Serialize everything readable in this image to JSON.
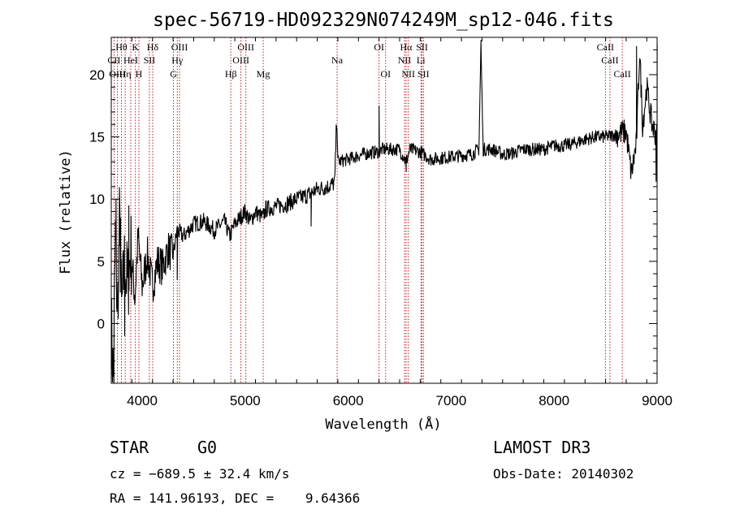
{
  "chart_data": {
    "type": "line",
    "title": "spec-56719-HD092329N074249M_sp12-046.fits",
    "xlabel": "Wavelength (Å)",
    "ylabel": "Flux (relative)",
    "xlim": [
      3700,
      9000
    ],
    "ylim": [
      -4.8,
      23
    ],
    "xticks": [
      4000,
      5000,
      6000,
      7000,
      8000,
      9000
    ],
    "yticks": [
      0,
      5,
      10,
      15,
      20
    ],
    "anchors": [
      [
        3700,
        0
      ],
      [
        3720,
        -4.5
      ],
      [
        3740,
        7
      ],
      [
        3760,
        0.5
      ],
      [
        3780,
        8
      ],
      [
        3800,
        0.8
      ],
      [
        3830,
        5
      ],
      [
        3860,
        3
      ],
      [
        3890,
        6
      ],
      [
        3930,
        2
      ],
      [
        3960,
        7
      ],
      [
        4000,
        3
      ],
      [
        4050,
        5.5
      ],
      [
        4100,
        3
      ],
      [
        4150,
        5
      ],
      [
        4200,
        4.5
      ],
      [
        4250,
        6
      ],
      [
        4300,
        5.5
      ],
      [
        4340,
        7.5
      ],
      [
        4400,
        7
      ],
      [
        4500,
        8
      ],
      [
        4600,
        8.2
      ],
      [
        4700,
        7.5
      ],
      [
        4800,
        8.2
      ],
      [
        4850,
        7
      ],
      [
        4900,
        8
      ],
      [
        5000,
        9
      ],
      [
        5050,
        8.2
      ],
      [
        5100,
        9
      ],
      [
        5170,
        8.5
      ],
      [
        5200,
        9.2
      ],
      [
        5300,
        9.4
      ],
      [
        5400,
        9.6
      ],
      [
        5500,
        10
      ],
      [
        5600,
        10.3
      ],
      [
        5700,
        10.8
      ],
      [
        5800,
        11
      ],
      [
        5870,
        11.3
      ],
      [
        5890,
        17
      ],
      [
        5900,
        13
      ],
      [
        6000,
        13.2
      ],
      [
        6100,
        13.5
      ],
      [
        6200,
        13.7
      ],
      [
        6300,
        13.8
      ],
      [
        6330,
        14
      ],
      [
        6400,
        14
      ],
      [
        6500,
        14
      ],
      [
        6563,
        13
      ],
      [
        6600,
        14
      ],
      [
        6700,
        13.8
      ],
      [
        6800,
        13.2
      ],
      [
        6900,
        13.3
      ],
      [
        7000,
        13.4
      ],
      [
        7100,
        13.5
      ],
      [
        7200,
        13.6
      ],
      [
        7270,
        14
      ],
      [
        7290,
        22.5
      ],
      [
        7310,
        14
      ],
      [
        7400,
        14
      ],
      [
        7500,
        13.6
      ],
      [
        7600,
        13.7
      ],
      [
        7700,
        14
      ],
      [
        7800,
        14
      ],
      [
        7900,
        14
      ],
      [
        8000,
        14.3
      ],
      [
        8100,
        14.3
      ],
      [
        8200,
        14.5
      ],
      [
        8300,
        14.8
      ],
      [
        8400,
        15
      ],
      [
        8500,
        15
      ],
      [
        8600,
        15.2
      ],
      [
        8700,
        15.4
      ],
      [
        8750,
        12
      ],
      [
        8800,
        14.5
      ],
      [
        8830,
        22
      ],
      [
        8860,
        16
      ],
      [
        8900,
        19
      ],
      [
        8950,
        16
      ],
      [
        9000,
        15
      ]
    ],
    "spikes": [
      [
        3725,
        -4.8
      ],
      [
        3745,
        10
      ],
      [
        3790,
        8.5
      ],
      [
        3830,
        -1
      ],
      [
        3870,
        9.5
      ],
      [
        4340,
        3.5
      ],
      [
        5640,
        7.8
      ],
      [
        6300,
        17.5
      ],
      [
        6563,
        12.2
      ],
      [
        7290,
        22.8
      ],
      [
        8800,
        22.3
      ],
      [
        8900,
        18
      ],
      [
        8990,
        11.4
      ],
      [
        9000,
        22.5
      ]
    ],
    "spectral_lines": [
      {
        "label": "Hθ",
        "wavelength": 3798,
        "row": 1
      },
      {
        "label": "K",
        "wavelength": 3934,
        "row": 1
      },
      {
        "label": "Hδ",
        "wavelength": 4102,
        "row": 1
      },
      {
        "label": "OIII",
        "wavelength": 4363,
        "row": 1
      },
      {
        "label": "OIII",
        "wavelength": 5007,
        "row": 1
      },
      {
        "label": "OI",
        "wavelength": 6300,
        "row": 1
      },
      {
        "label": "Hα",
        "wavelength": 6563,
        "row": 1
      },
      {
        "label": "SII",
        "wavelength": 6717,
        "row": 1
      },
      {
        "label": "CaII",
        "wavelength": 8498,
        "row": 1
      },
      {
        "label": "CII",
        "wavelength": 3727,
        "row": 2
      },
      {
        "label": "HeI",
        "wavelength": 3889,
        "row": 2
      },
      {
        "label": "SII",
        "wavelength": 4070,
        "row": 2
      },
      {
        "label": "Hγ",
        "wavelength": 4341,
        "row": 2
      },
      {
        "label": "OIII",
        "wavelength": 4959,
        "row": 2
      },
      {
        "label": "Na",
        "wavelength": 5893,
        "row": 2
      },
      {
        "label": "NII",
        "wavelength": 6548,
        "row": 2
      },
      {
        "label": "Li",
        "wavelength": 6707,
        "row": 2
      },
      {
        "label": "CaII",
        "wavelength": 8542,
        "row": 2
      },
      {
        "label": "OIII",
        "wavelength": 3760,
        "row": 3
      },
      {
        "label": "Hη",
        "wavelength": 3835,
        "row": 3
      },
      {
        "label": "H",
        "wavelength": 3968,
        "row": 3
      },
      {
        "label": "G",
        "wavelength": 4304,
        "row": 3
      },
      {
        "label": "Hβ",
        "wavelength": 4861,
        "row": 3
      },
      {
        "label": "Mg",
        "wavelength": 5175,
        "row": 3
      },
      {
        "label": "OI",
        "wavelength": 6364,
        "row": 3
      },
      {
        "label": "NII",
        "wavelength": 6584,
        "row": 3
      },
      {
        "label": "SII",
        "wavelength": 6731,
        "row": 3
      },
      {
        "label": "CaII",
        "wavelength": 8662,
        "row": 3
      }
    ]
  },
  "info": {
    "object_class": "STAR",
    "subclass": "G0",
    "survey": "LAMOST DR3",
    "cz": "cz = −689.5 ± 32.4 km/s",
    "obs_date": "Obs-Date: 20140302",
    "coords": "RA = 141.96193, DEC =    9.64366"
  }
}
